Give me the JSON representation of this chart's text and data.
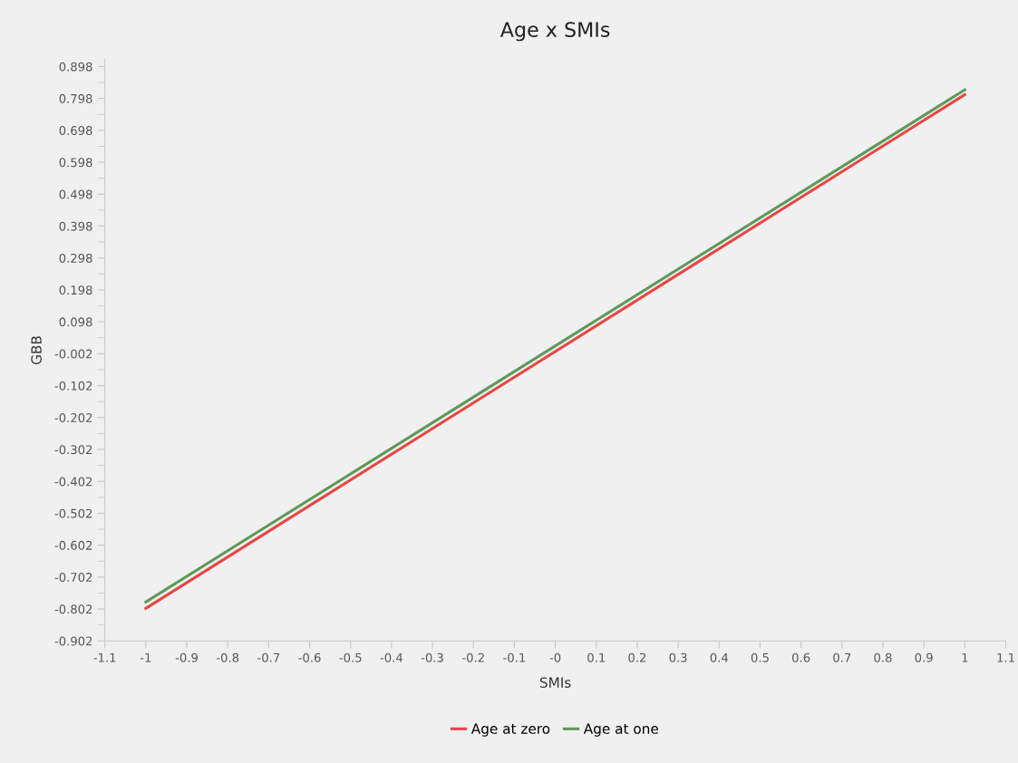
{
  "chart_data": {
    "type": "line",
    "title": "Age x SMIs",
    "xlabel": "SMIs",
    "ylabel": "GBB",
    "x": [
      -1,
      1
    ],
    "series": [
      {
        "name": "Age at zero",
        "color": "#e84545",
        "values": [
          -0.8,
          0.81
        ]
      },
      {
        "name": "Age at one",
        "color": "#5a9a5a",
        "values": [
          -0.78,
          0.825
        ]
      }
    ],
    "xlim": [
      -1.1,
      1.1
    ],
    "xticks": [
      -1.1,
      -1,
      -0.9,
      -0.8,
      -0.7,
      -0.6,
      -0.5,
      -0.4,
      -0.3,
      -0.2,
      -0.1,
      {
        "value": 0,
        "label": "-0"
      },
      0.1,
      0.2,
      0.3,
      0.4,
      0.5,
      0.6,
      0.7,
      0.8,
      0.9,
      1,
      1.1
    ],
    "ylim": [
      -0.902,
      0.92
    ],
    "yticks": [
      -0.902,
      -0.802,
      -0.702,
      -0.602,
      -0.502,
      -0.402,
      -0.302,
      -0.202,
      -0.102,
      -0.002,
      0.098,
      0.198,
      0.298,
      0.398,
      0.498,
      0.598,
      0.698,
      0.798,
      0.898
    ],
    "grid": false,
    "legend": "bottom",
    "marker": "none",
    "line_style": "solid"
  }
}
